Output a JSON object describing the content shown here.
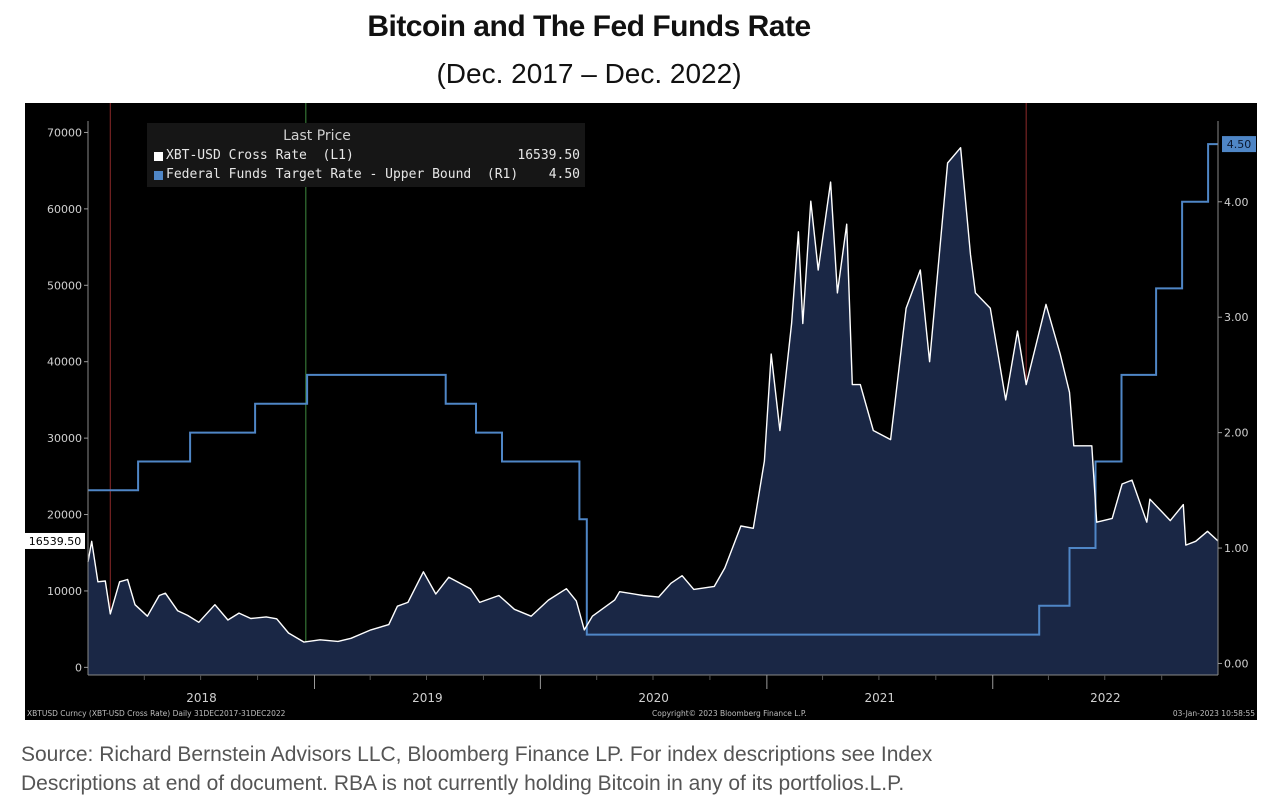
{
  "title": "Bitcoin and The Fed Funds Rate",
  "subtitle": "(Dec. 2017  –  Dec. 2022)",
  "legend_header": "Last Price",
  "colors": {
    "background": "#000000",
    "bitcoin_line": "#ffffff",
    "bitcoin_fill": "#1a2745",
    "fed_line": "#4f86c6",
    "axis": "#9a9a9a"
  },
  "bottom_left_note": "XBTUSD Curncy (XBT-USD Cross Rate)  Daily 31DEC2017-31DEC2022",
  "bottom_center_note": "Copyright© 2023 Bloomberg Finance L.P.",
  "bottom_right_note": "03-Jan-2023 10:58:55",
  "footer": {
    "line1": "Source: Richard Bernstein Advisors LLC, Bloomberg Finance LP. For index descriptions see Index",
    "line2": "Descriptions at end of document. RBA is not currently holding Bitcoin in any of its portfolios.L.P."
  },
  "chart_data": {
    "type": "line",
    "title": "Bitcoin and The Fed Funds Rate",
    "subtitle": "(Dec. 2017  –  Dec. 2022)",
    "x_ticks": [
      "2018",
      "2019",
      "2020",
      "2021",
      "2022"
    ],
    "y_left_ticks": [
      "0",
      "10000",
      "20000",
      "30000",
      "40000",
      "50000",
      "60000",
      "70000"
    ],
    "y_right_ticks": [
      "0.00",
      "1.00",
      "2.00",
      "3.00",
      "4.00"
    ],
    "y_left_range": [
      -1000,
      71500
    ],
    "y_right_range": [
      -0.1,
      4.7
    ],
    "x_range": [
      "2017-12-31",
      "2022-12-31"
    ],
    "grid": false,
    "legend_position": "top-left",
    "series": [
      {
        "name": "XBT-USD Cross Rate  (L1)",
        "axis": "left",
        "last_value": "16539.50",
        "last_value_label": "16539.50",
        "points": [
          [
            "2017-12-31",
            13800
          ],
          [
            "2018-01-06",
            16500
          ],
          [
            "2018-01-16",
            11200
          ],
          [
            "2018-01-28",
            11300
          ],
          [
            "2018-02-05",
            7000
          ],
          [
            "2018-02-20",
            11200
          ],
          [
            "2018-03-05",
            11500
          ],
          [
            "2018-03-17",
            8200
          ],
          [
            "2018-04-06",
            6700
          ],
          [
            "2018-04-25",
            9400
          ],
          [
            "2018-05-05",
            9700
          ],
          [
            "2018-05-25",
            7400
          ],
          [
            "2018-06-10",
            6800
          ],
          [
            "2018-06-28",
            5900
          ],
          [
            "2018-07-24",
            8200
          ],
          [
            "2018-08-14",
            6200
          ],
          [
            "2018-09-01",
            7100
          ],
          [
            "2018-09-20",
            6400
          ],
          [
            "2018-10-15",
            6600
          ],
          [
            "2018-11-01",
            6350
          ],
          [
            "2018-11-20",
            4500
          ],
          [
            "2018-12-15",
            3300
          ],
          [
            "2019-01-10",
            3600
          ],
          [
            "2019-02-08",
            3400
          ],
          [
            "2019-03-01",
            3800
          ],
          [
            "2019-04-02",
            4900
          ],
          [
            "2019-05-01",
            5600
          ],
          [
            "2019-05-15",
            8000
          ],
          [
            "2019-06-01",
            8500
          ],
          [
            "2019-06-26",
            12500
          ],
          [
            "2019-07-16",
            9600
          ],
          [
            "2019-08-06",
            11800
          ],
          [
            "2019-09-10",
            10300
          ],
          [
            "2019-09-25",
            8500
          ],
          [
            "2019-10-26",
            9400
          ],
          [
            "2019-11-20",
            7600
          ],
          [
            "2019-12-17",
            6700
          ],
          [
            "2020-01-14",
            8800
          ],
          [
            "2020-02-12",
            10300
          ],
          [
            "2020-02-28",
            8700
          ],
          [
            "2020-03-12",
            4900
          ],
          [
            "2020-03-25",
            6700
          ],
          [
            "2020-04-30",
            8800
          ],
          [
            "2020-05-08",
            9900
          ],
          [
            "2020-06-15",
            9400
          ],
          [
            "2020-07-10",
            9200
          ],
          [
            "2020-07-30",
            11000
          ],
          [
            "2020-08-17",
            12000
          ],
          [
            "2020-09-05",
            10200
          ],
          [
            "2020-10-08",
            10600
          ],
          [
            "2020-10-25",
            13000
          ],
          [
            "2020-11-20",
            18500
          ],
          [
            "2020-12-10",
            18200
          ],
          [
            "2020-12-28",
            27000
          ],
          [
            "2021-01-08",
            41000
          ],
          [
            "2021-01-22",
            31000
          ],
          [
            "2021-02-10",
            45000
          ],
          [
            "2021-02-21",
            57000
          ],
          [
            "2021-02-28",
            45000
          ],
          [
            "2021-03-13",
            61000
          ],
          [
            "2021-03-25",
            52000
          ],
          [
            "2021-04-14",
            63500
          ],
          [
            "2021-04-25",
            49000
          ],
          [
            "2021-05-10",
            58000
          ],
          [
            "2021-05-19",
            37000
          ],
          [
            "2021-06-01",
            37000
          ],
          [
            "2021-06-22",
            31000
          ],
          [
            "2021-07-20",
            29800
          ],
          [
            "2021-08-14",
            47000
          ],
          [
            "2021-09-06",
            52000
          ],
          [
            "2021-09-21",
            40000
          ],
          [
            "2021-10-20",
            66000
          ],
          [
            "2021-11-10",
            68000
          ],
          [
            "2021-11-26",
            54000
          ],
          [
            "2021-12-04",
            49000
          ],
          [
            "2021-12-28",
            47000
          ],
          [
            "2022-01-22",
            35000
          ],
          [
            "2022-02-10",
            44000
          ],
          [
            "2022-02-24",
            37000
          ],
          [
            "2022-03-28",
            47500
          ],
          [
            "2022-04-20",
            41000
          ],
          [
            "2022-05-05",
            36000
          ],
          [
            "2022-05-12",
            29000
          ],
          [
            "2022-06-10",
            29000
          ],
          [
            "2022-06-18",
            19000
          ],
          [
            "2022-07-13",
            19500
          ],
          [
            "2022-07-29",
            24000
          ],
          [
            "2022-08-14",
            24500
          ],
          [
            "2022-09-07",
            19000
          ],
          [
            "2022-09-12",
            22000
          ],
          [
            "2022-10-15",
            19200
          ],
          [
            "2022-11-05",
            21300
          ],
          [
            "2022-11-09",
            16000
          ],
          [
            "2022-11-25",
            16500
          ],
          [
            "2022-12-14",
            17800
          ],
          [
            "2022-12-31",
            16540
          ]
        ]
      },
      {
        "name": "Federal Funds Target Rate - Upper Bound  (R1)",
        "axis": "right",
        "step": true,
        "last_value": "4.50",
        "last_value_label": "4.50",
        "points": [
          [
            "2017-12-31",
            1.5
          ],
          [
            "2018-03-22",
            1.75
          ],
          [
            "2018-06-14",
            2.0
          ],
          [
            "2018-09-27",
            2.25
          ],
          [
            "2018-12-20",
            2.5
          ],
          [
            "2019-08-01",
            2.25
          ],
          [
            "2019-09-19",
            2.0
          ],
          [
            "2019-10-31",
            1.75
          ],
          [
            "2020-03-04",
            1.25
          ],
          [
            "2020-03-16",
            0.25
          ],
          [
            "2022-03-17",
            0.5
          ],
          [
            "2022-05-05",
            1.0
          ],
          [
            "2022-06-16",
            1.75
          ],
          [
            "2022-07-28",
            2.5
          ],
          [
            "2022-09-22",
            3.25
          ],
          [
            "2022-11-03",
            4.0
          ],
          [
            "2022-12-15",
            4.5
          ],
          [
            "2022-12-31",
            4.5
          ]
        ]
      }
    ],
    "vertical_markers": [
      {
        "date": "2018-02-05",
        "color": "#8e2a2a"
      },
      {
        "date": "2018-12-18",
        "color": "#3f8a3f"
      },
      {
        "date": "2022-02-24",
        "color": "#8e2a2a"
      }
    ]
  }
}
